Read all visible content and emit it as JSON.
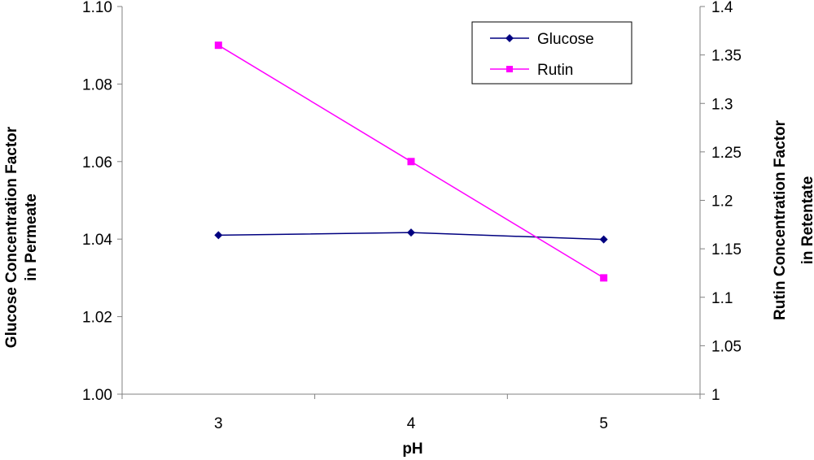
{
  "chart_data": {
    "type": "line",
    "x": [
      3,
      4,
      5
    ],
    "xlabel": "pH",
    "ylabel_left_line1": "Glucose Concentration Factor",
    "ylabel_left_line2": "in Permeate",
    "ylabel_right_line1": "Rutin Concentration Factor",
    "ylabel_right_line2": "in Retentate",
    "y_left_lim": [
      1.0,
      1.1
    ],
    "y_left_ticks": [
      "1.00",
      "1.02",
      "1.04",
      "1.06",
      "1.08",
      "1.10"
    ],
    "y_right_lim": [
      1,
      1.4
    ],
    "y_right_ticks": [
      "1",
      "1.05",
      "1.1",
      "1.15",
      "1.2",
      "1.25",
      "1.3",
      "1.35",
      "1.4"
    ],
    "x_ticks": [
      "3",
      "4",
      "5"
    ],
    "grid": false,
    "legend_position": "top-right",
    "series": [
      {
        "name": "Glucose",
        "axis": "left",
        "marker": "diamond",
        "color": "#000080",
        "values": [
          1.041,
          1.0417,
          1.0399
        ]
      },
      {
        "name": "Rutin",
        "axis": "right",
        "marker": "square",
        "color": "#FF00FF",
        "values": [
          1.36,
          1.24,
          1.12
        ]
      }
    ]
  }
}
